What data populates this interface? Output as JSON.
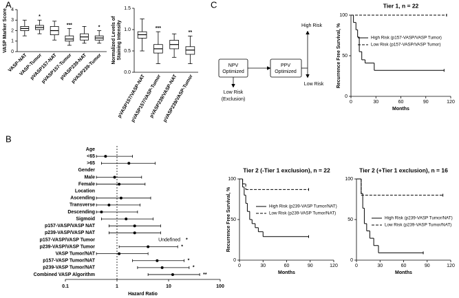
{
  "panel_labels": [
    "A",
    "B",
    "C"
  ],
  "diagram": {
    "nodes": [
      {
        "lines": [
          "NPV",
          "Optimized"
        ]
      },
      {
        "lines": [
          "PPV",
          "Optimized"
        ]
      },
      {
        "lines": [
          "High Risk"
        ]
      },
      {
        "lines": [
          "Low Risk",
          "(Exclusion)"
        ]
      },
      {
        "lines": [
          "Low Risk"
        ]
      }
    ]
  },
  "chart_data": [
    {
      "type": "box",
      "ylabel": "VASP Marker Score",
      "categories": [
        "VASP-NAT",
        "VASP-Tumor",
        "pVASP157-NAT",
        "pVASP157-Tumor",
        "pVASP239-NAT",
        "pVASP239-Tumor"
      ],
      "boxes": [
        {
          "min": 1.5,
          "q1": 2.0,
          "median": 2.2,
          "q3": 2.4,
          "max": 3.0
        },
        {
          "min": 1.7,
          "q1": 2.1,
          "median": 2.3,
          "q3": 2.5,
          "max": 3.0
        },
        {
          "min": 1.1,
          "q1": 1.6,
          "median": 2.0,
          "q3": 2.4,
          "max": 2.9
        },
        {
          "min": 0.6,
          "q1": 1.0,
          "median": 1.2,
          "q3": 1.5,
          "max": 2.2
        },
        {
          "min": 0.8,
          "q1": 1.1,
          "median": 1.4,
          "q3": 1.7,
          "max": 2.4
        },
        {
          "min": 0.8,
          "q1": 1.1,
          "median": 1.3,
          "q3": 1.5,
          "max": 2.0
        }
      ],
      "significance": [
        null,
        "*",
        null,
        "***",
        null,
        "*"
      ],
      "ylim": [
        0,
        4
      ],
      "yticks": [
        0,
        1,
        2,
        3,
        4
      ]
    },
    {
      "type": "box",
      "ylabel_lines": [
        "Normalized Levels of",
        "Staining Intensity"
      ],
      "categories": [
        "pVASP157/VASP-NAT",
        "pVASP157/VASP-Tumor",
        "pVASP239/VASP-NAT",
        "pVASP239/VASP-Tumor"
      ],
      "boxes": [
        {
          "min": 0.5,
          "q1": 0.8,
          "median": 0.88,
          "q3": 0.95,
          "max": 1.25
        },
        {
          "min": 0.2,
          "q1": 0.45,
          "median": 0.55,
          "q3": 0.65,
          "max": 0.95
        },
        {
          "min": 0.35,
          "q1": 0.55,
          "median": 0.65,
          "q3": 0.75,
          "max": 0.9
        },
        {
          "min": 0.2,
          "q1": 0.42,
          "median": 0.52,
          "q3": 0.6,
          "max": 0.85
        }
      ],
      "significance": [
        null,
        "***",
        null,
        "**"
      ],
      "ylim": [
        0,
        1.5
      ],
      "yticks": [
        {
          "value": 0,
          "label": "0.0"
        },
        0.5,
        {
          "value": 1,
          "label": "1.0"
        },
        1.5
      ]
    },
    {
      "type": "forest",
      "xlabel": "Hazard Ratio",
      "log_x": true,
      "xlim": [
        0.1,
        100
      ],
      "xticks": [
        0.1,
        1,
        10,
        100
      ],
      "reference_line": 1,
      "categories": [
        "Age",
        "<65",
        ">65",
        "Gender",
        "Male",
        "Female",
        "Location",
        "Ascending",
        "Transverse",
        "Descending",
        "Sigmoid",
        "p157-VASP/VASP NAT",
        "p239-VASP/VASP NAT",
        "p157-VASP/VASP Tumor",
        "p239-VASP/VASP Tumor",
        "VASP Tumor/NAT",
        "p157-VASP Tumor/NAT",
        "p239-VASP Tumor/NAT",
        "Combined VASP Algorithm"
      ],
      "values": [
        null,
        0.6,
        1.7,
        null,
        0.9,
        1.1,
        null,
        1.2,
        0.7,
        0.5,
        1.5,
        2.2,
        2.2,
        null,
        4,
        1.1,
        6,
        7.5,
        12
      ],
      "ci_low": [
        null,
        0.4,
        0.5,
        null,
        0.4,
        0.4,
        null,
        0.4,
        0.4,
        0.4,
        0.5,
        0.7,
        0.7,
        null,
        1.1,
        0.4,
        2,
        2.5,
        4
      ],
      "ci_high": [
        null,
        2,
        5.5,
        null,
        3,
        3.5,
        null,
        4.5,
        2.8,
        2.5,
        5,
        7,
        7,
        null,
        15,
        4,
        20,
        25,
        40
      ],
      "value_labels": [
        null,
        null,
        null,
        null,
        null,
        null,
        null,
        null,
        null,
        null,
        null,
        null,
        null,
        "Undefined",
        null,
        null,
        null,
        null,
        null
      ],
      "significance": [
        null,
        null,
        null,
        null,
        null,
        null,
        null,
        null,
        null,
        null,
        null,
        null,
        null,
        "*",
        "*",
        null,
        "*",
        "*",
        "**"
      ]
    },
    {
      "type": "line",
      "title": "Tier 1, n = 22",
      "xlabel": "Months",
      "ylabel": "Recurrence Free Survival, %",
      "xlim": [
        0,
        120
      ],
      "xticks": [
        0,
        30,
        60,
        90,
        120
      ],
      "ylim": [
        0,
        100
      ],
      "yticks": [
        0,
        50,
        100
      ],
      "series": [
        {
          "name": "High Risk (p157-VASP/VASP Tumor)",
          "color": "#000000",
          "line_style": "solid",
          "x": [
            0,
            3,
            6,
            8,
            10,
            13,
            17,
            28,
            112
          ],
          "values": [
            100,
            91,
            82,
            73,
            55,
            45,
            41,
            32,
            32
          ]
        },
        {
          "name": "Low Risk (p157-VASP/VASP Tumor)",
          "color": "#000000",
          "line_style": "dashed",
          "x": [
            0,
            115
          ],
          "values": [
            100,
            100
          ]
        }
      ]
    },
    {
      "type": "line",
      "title": "Tier 2 (-Tier 1 exclusion), n = 22",
      "xlabel": "Months",
      "ylabel": "Recurrence Free Survival, %",
      "xlim": [
        0,
        120
      ],
      "xticks": [
        0,
        30,
        60,
        90,
        120
      ],
      "ylim": [
        0,
        100
      ],
      "yticks": [
        0,
        50,
        100
      ],
      "series": [
        {
          "name": "High Risk (p239-VASP Tumor/NAT)",
          "color": "#000000",
          "line_style": "solid",
          "x": [
            0,
            4,
            6,
            8,
            10,
            13,
            16,
            20,
            24,
            30,
            88
          ],
          "values": [
            100,
            90,
            80,
            70,
            60,
            50,
            45,
            40,
            35,
            29,
            29
          ]
        },
        {
          "name": "Low Risk (p239-VASP Tumor/NAT)",
          "color": "#000000",
          "line_style": "dashed",
          "x": [
            0,
            4,
            8,
            88
          ],
          "values": [
            100,
            94,
            87,
            87
          ]
        }
      ]
    },
    {
      "type": "line",
      "title": "Tier 2 (+Tier 1 exclusion), n = 16",
      "xlabel": "Months",
      "xlim": [
        0,
        120
      ],
      "xticks": [
        0,
        30,
        60,
        90,
        120
      ],
      "ylim": [
        0,
        100
      ],
      "yticks": [
        0,
        50,
        100
      ],
      "series": [
        {
          "name": "High Risk (p239-VASP Tumor/NAT)",
          "color": "#000000",
          "line_style": "solid",
          "x": [
            0,
            6,
            8,
            10,
            13,
            17,
            22,
            28,
            85
          ],
          "values": [
            100,
            82,
            64,
            45,
            36,
            27,
            18,
            9,
            9
          ]
        },
        {
          "name": "Low Risk (p239-VASP Tumor/NAT)",
          "color": "#000000",
          "line_style": "dashed",
          "x": [
            0,
            6,
            110
          ],
          "values": [
            100,
            80,
            80
          ]
        }
      ]
    }
  ]
}
